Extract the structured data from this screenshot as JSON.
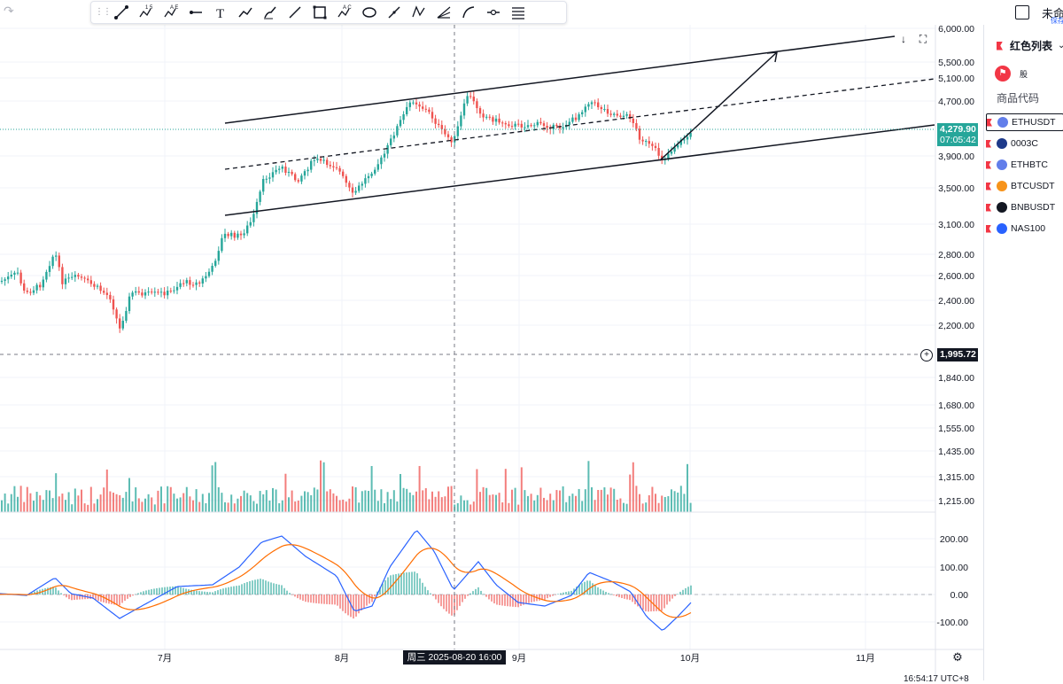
{
  "toolbar": {
    "tools": [
      "trend-line-icon",
      "pattern-15-icon",
      "pattern-ae-icon",
      "horizontal-ray-icon",
      "text-icon",
      "path-icon",
      "brush-icon",
      "line-icon",
      "rectangle-icon",
      "xabcd-icon",
      "ellipse-icon",
      "arrow-line-icon",
      "abcd-icon",
      "fib-fan-icon",
      "curve-icon",
      "price-range-icon",
      "menu-lines-icon"
    ],
    "label_15": "1 5",
    "label_ae": "A E",
    "label_ac": "A C",
    "text_tool": "T"
  },
  "header": {
    "title": "未命",
    "save_hint": "保存"
  },
  "chart": {
    "price_axis": [
      "6,000.00",
      "5,500.00",
      "5,100.00",
      "4,700.00",
      "3,900.00",
      "3,500.00",
      "3,100.00",
      "2,800.00",
      "2,600.00",
      "2,400.00",
      "2,200.00",
      "1,840.00",
      "1,680.00",
      "1,555.00",
      "1,435.00",
      "1,315.00",
      "1,215.00"
    ],
    "osc_axis": [
      "200.00",
      "100.00",
      "0.00",
      "-100.00"
    ],
    "time_axis": [
      "7月",
      "8月",
      "9月",
      "10月",
      "11月"
    ],
    "current_price": "4,279.90",
    "countdown": "07:05:42",
    "crosshair_price": "1,995.72",
    "crosshair_time": "周三 2025-08-20   16:00",
    "clock": "16:54:17 UTC+8",
    "colors": {
      "up": "#26a69a",
      "down": "#ef5350",
      "macd": "#2962ff",
      "signal": "#ff6d00"
    }
  },
  "chart_data": {
    "type": "candlestick",
    "symbol": "ETHUSDT",
    "last": 4279.9,
    "x": [
      "7月",
      "8月",
      "9月",
      "10月",
      "11月"
    ],
    "y_scale": "log",
    "ylim": [
      1215,
      6000
    ],
    "oscillator_ylim": [
      -100,
      200
    ]
  },
  "watchlist": {
    "name": "红色列表",
    "sub_label": "股",
    "column_header": "商品代码",
    "items": [
      {
        "symbol": "ETHUSDT",
        "active": true,
        "coin": "#627eea",
        "badge": "#f7a600"
      },
      {
        "symbol": "0003C",
        "active": false,
        "coin": "#1e3a8a",
        "badge": "#f7a600"
      },
      {
        "symbol": "ETHBTC",
        "active": false,
        "coin": "#627eea",
        "badge": "#f7931a"
      },
      {
        "symbol": "BTCUSDT",
        "active": false,
        "coin": "#f7931a",
        "badge": "#26a69a"
      },
      {
        "symbol": "BNBUSDT",
        "active": false,
        "coin": "#131722",
        "badge": "#f3ba2f"
      },
      {
        "symbol": "NAS100",
        "active": false,
        "coin": "#2962ff",
        "badge": ""
      }
    ]
  }
}
